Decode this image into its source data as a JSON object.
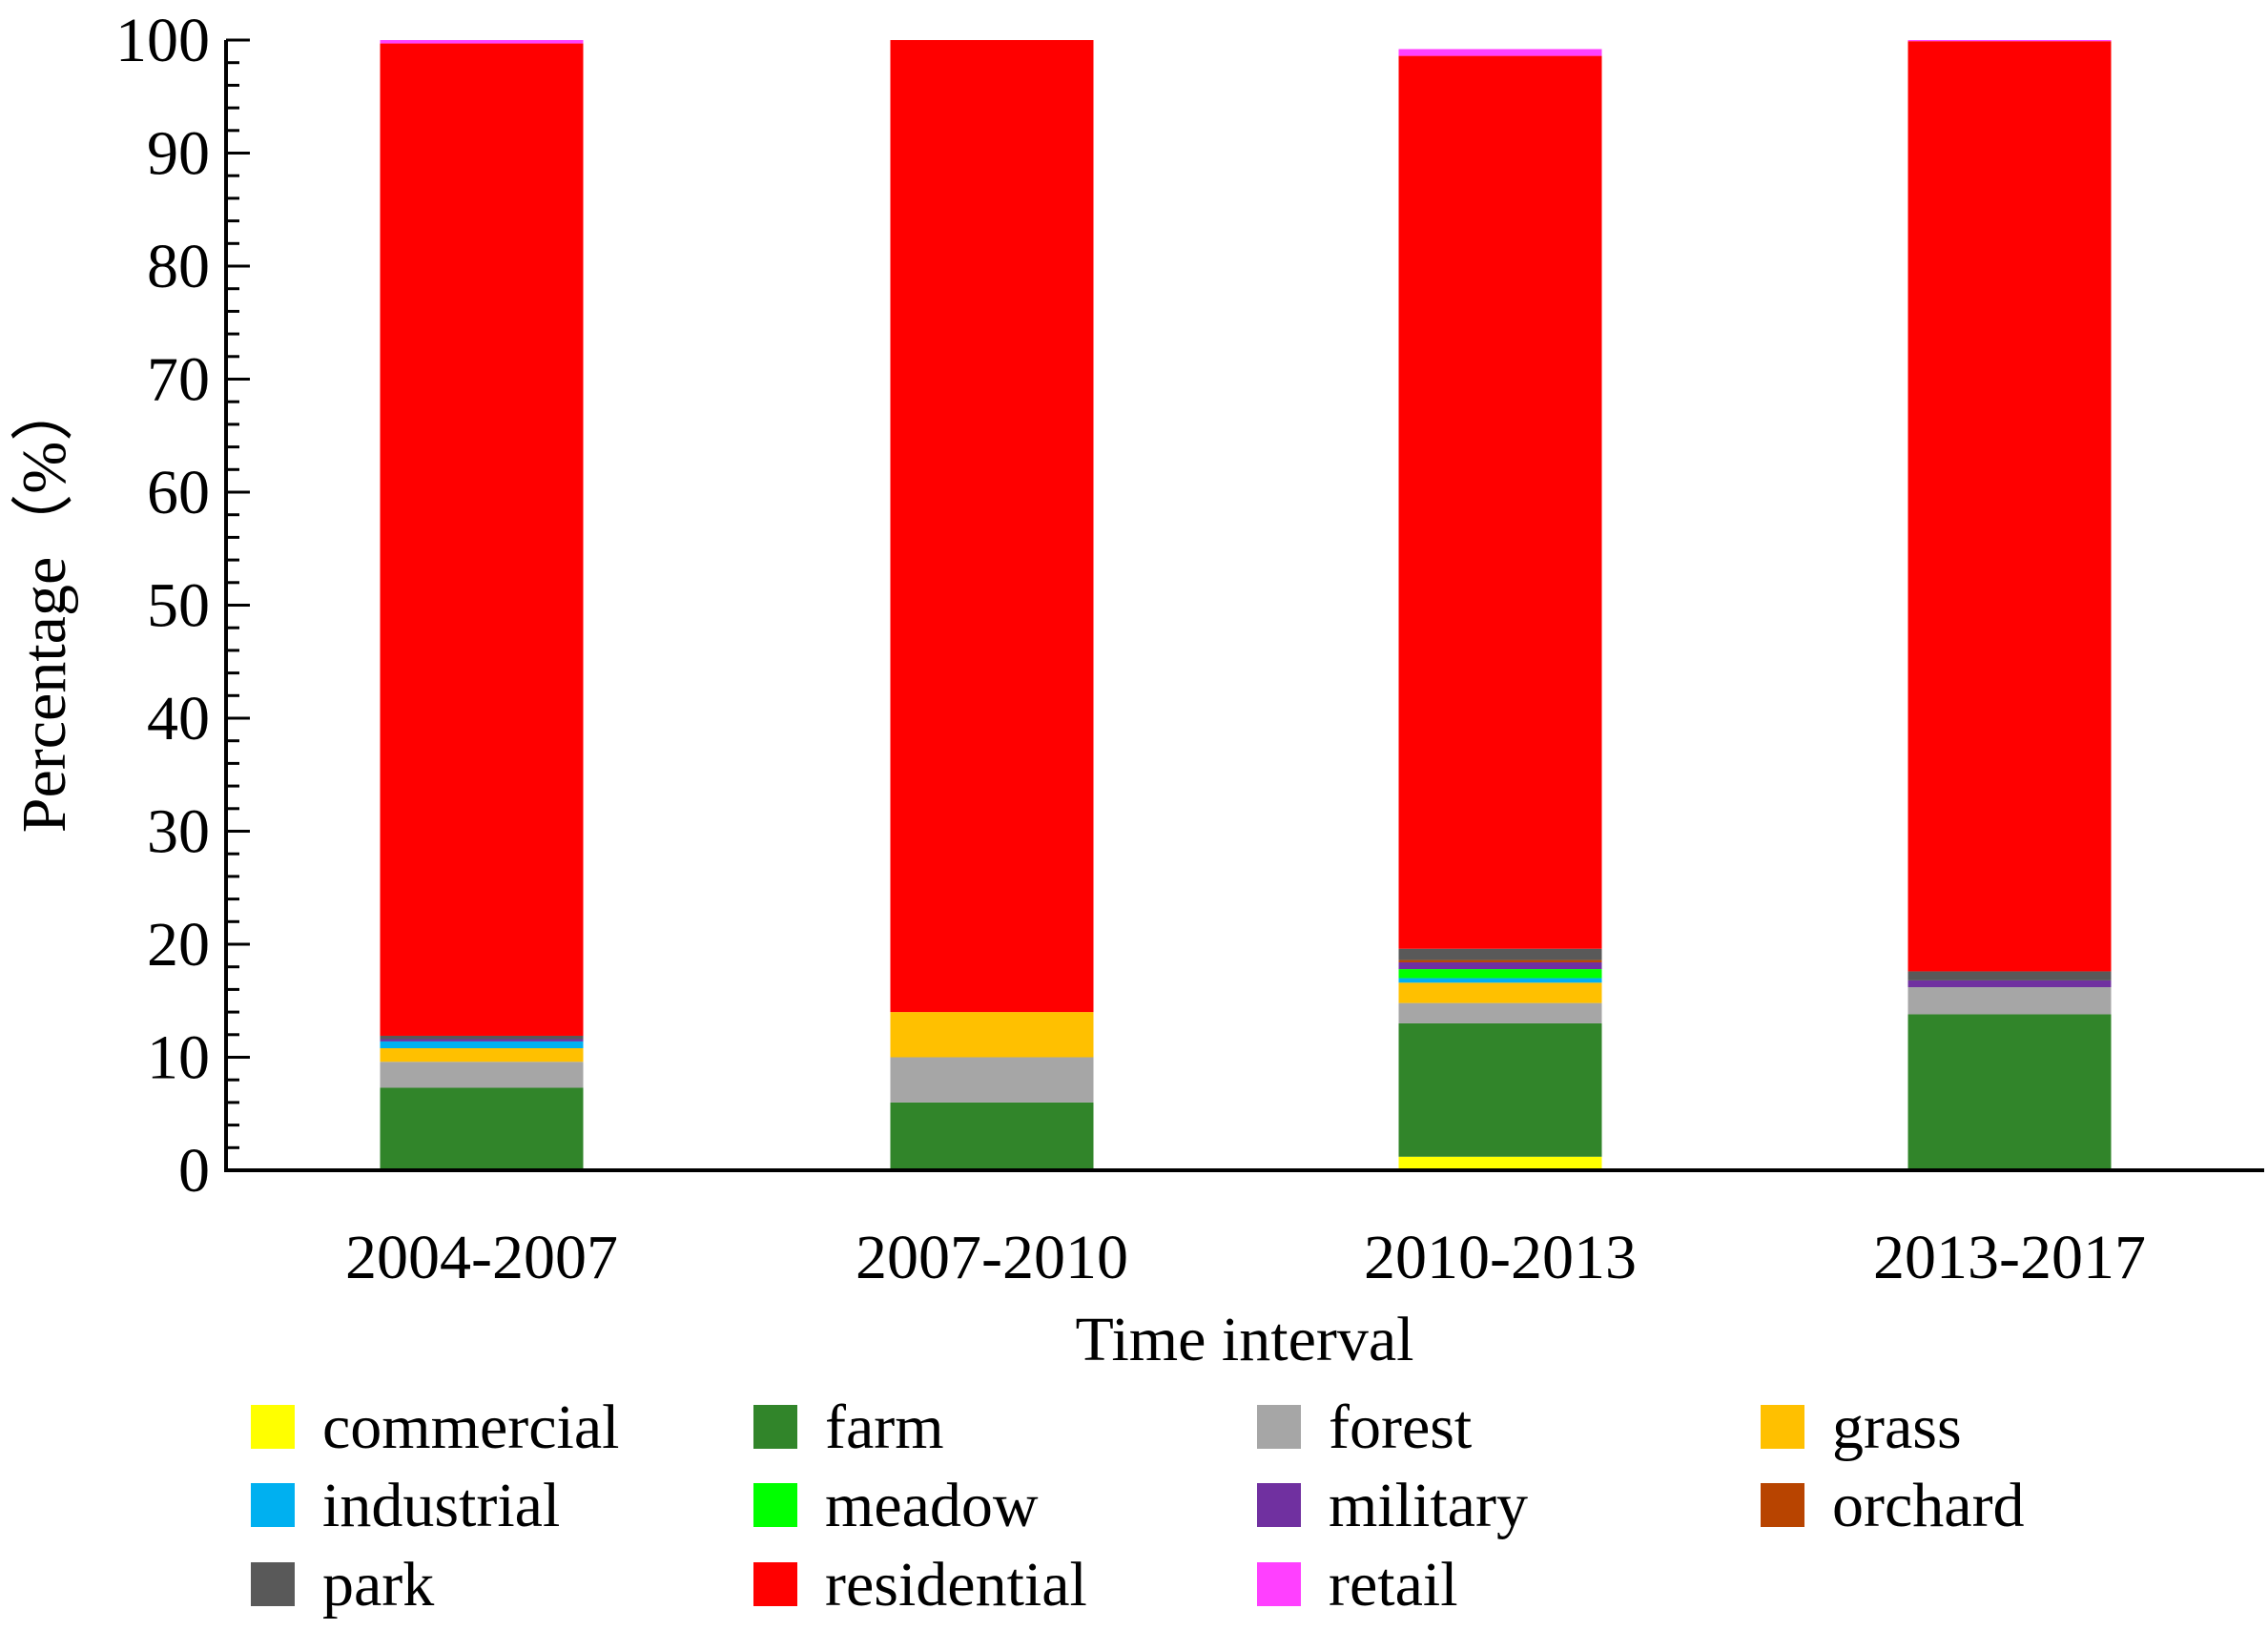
{
  "chart_data": {
    "type": "bar",
    "stacked": true,
    "title": "",
    "xlabel": "Time interval",
    "ylabel": "Percentage（%）",
    "ylim": [
      0,
      100
    ],
    "yticks": [
      "0",
      "10",
      "20",
      "30",
      "40",
      "50",
      "60",
      "70",
      "80",
      "90",
      "100"
    ],
    "categories": [
      "2004-2007",
      "2007-2010",
      "2010-2013",
      "2013-2017"
    ],
    "legend_position": "bottom",
    "series": [
      {
        "name": "commercial",
        "color": "#FFFF00",
        "values": [
          0,
          0,
          1.2,
          0
        ]
      },
      {
        "name": "farm",
        "color": "#31852A",
        "values": [
          7.3,
          6.0,
          11.8,
          13.8
        ]
      },
      {
        "name": "forest",
        "color": "#A6A6A6",
        "values": [
          2.3,
          4.0,
          1.8,
          2.4
        ]
      },
      {
        "name": "grass",
        "color": "#FFC000",
        "values": [
          1.2,
          4.0,
          1.8,
          0
        ]
      },
      {
        "name": "industrial",
        "color": "#00B0F0",
        "values": [
          0.6,
          0,
          0.4,
          0
        ]
      },
      {
        "name": "meadow",
        "color": "#00FF00",
        "values": [
          0,
          0,
          0.8,
          0
        ]
      },
      {
        "name": "military",
        "color": "#7030A0",
        "values": [
          0.2,
          0,
          0.6,
          0.6
        ]
      },
      {
        "name": "orchard",
        "color": "#B84400",
        "values": [
          0,
          0,
          0.2,
          0
        ]
      },
      {
        "name": "park",
        "color": "#595959",
        "values": [
          0.3,
          0,
          1.0,
          0.8
        ]
      },
      {
        "name": "residential",
        "color": "#FF0000",
        "values": [
          87.8,
          86.0,
          79.0,
          82.3
        ]
      },
      {
        "name": "retail",
        "color": "#FF40FF",
        "values": [
          0.3,
          0,
          0.6,
          0.1
        ]
      }
    ]
  }
}
